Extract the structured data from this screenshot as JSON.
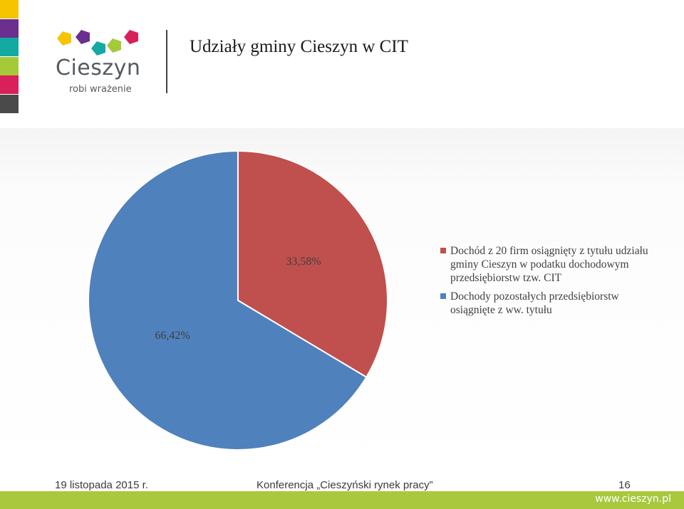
{
  "header": {
    "title": "Udziały gminy Cieszyn w CIT",
    "logo_word": "Cieszyn",
    "logo_tagline": "robi wrażenie"
  },
  "colors": {
    "strip": [
      "#f6c400",
      "#6a2f8f",
      "#15a9a3",
      "#a6c93a",
      "#d8205a",
      "#4a4a4a"
    ],
    "logo_shapes": [
      "#f6c400",
      "#6a2f8f",
      "#15a9a3",
      "#a6c93a",
      "#d8205a"
    ],
    "accent_bar": "#a9c83e"
  },
  "chart_data": {
    "type": "pie",
    "title": "",
    "slices": [
      {
        "label": "Dochód z 20 firm osiągnięty z tytułu udziału gminy Cieszyn w podatku dochodowym przedsiębiorstw tzw. CIT",
        "value": 33.58,
        "value_label": "33,58%",
        "color": "#c0504d"
      },
      {
        "label": "Dochody pozostałych przedsiębiorstw osiągnięte z ww. tytułu",
        "value": 66.42,
        "value_label": "66,42%",
        "color": "#4f81bd"
      }
    ],
    "start_angle_deg": 0,
    "direction": "clockwise",
    "legend_position": "right"
  },
  "footer": {
    "date": "19 listopada 2015 r.",
    "event": "Konferencja „Cieszyński rynek pracy”",
    "page": "16",
    "website": "www.cieszyn.pl"
  }
}
